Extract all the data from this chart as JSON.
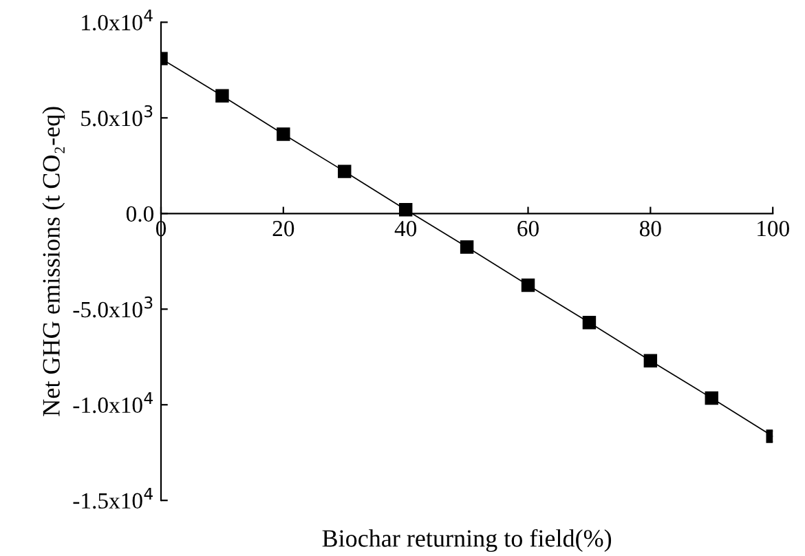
{
  "chart_data": {
    "type": "line",
    "xlabel": "Biochar returning to field(%)",
    "ylabel": "Net GHG emissions (t CO₂-eq)",
    "x": [
      0,
      10,
      20,
      30,
      40,
      50,
      60,
      70,
      80,
      90,
      100
    ],
    "series": [
      {
        "color": "#000000",
        "values": [
          8100,
          6150,
          4150,
          2200,
          200,
          -1750,
          -3750,
          -5700,
          -7700,
          -9650,
          -11650
        ]
      }
    ],
    "marker": "square",
    "line_style": "solid",
    "grid": false,
    "legend": false,
    "xlim": [
      0,
      100
    ],
    "xticks": [
      0,
      20,
      40,
      60,
      80,
      100
    ],
    "ylim": [
      -15000,
      10000
    ],
    "yticks": [
      {
        "value": -15000,
        "label": "-1.5x10$^{4}$"
      },
      {
        "value": -10000,
        "label": "-1.0x10$^{4}$"
      },
      {
        "value": -5000,
        "label": "-5.0x10$^{3}$"
      },
      {
        "value": 0,
        "label": "0.0"
      },
      {
        "value": 5000,
        "label": "5.0x10$^{3}$"
      },
      {
        "value": 10000,
        "label": "1.0x10$^{4}$"
      }
    ]
  }
}
